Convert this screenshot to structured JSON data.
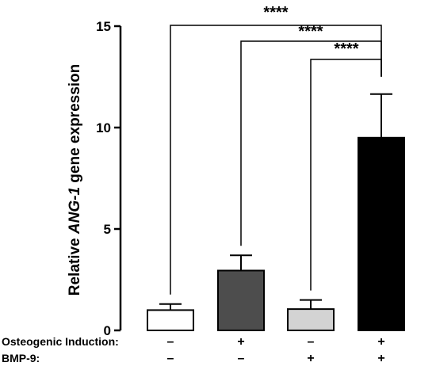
{
  "chart_data": {
    "type": "bar",
    "ylabel_prefix": "Relative ",
    "ylabel_gene": "ANG-1",
    "ylabel_suffix": " gene expression",
    "xlabel": "",
    "ylim": [
      0,
      15
    ],
    "yticks": [
      0,
      5,
      10,
      15
    ],
    "grid": false,
    "legend": "none",
    "values": [
      1.0,
      2.95,
      1.05,
      9.5
    ],
    "errors": [
      0.3,
      0.75,
      0.45,
      2.15
    ],
    "colors": [
      "#ffffff",
      "#4d4d4d",
      "#d3d3d3",
      "#000000"
    ],
    "conditions": [
      {
        "label": "Osteogenic Induction:",
        "marks": [
          "–",
          "+",
          "–",
          "+"
        ]
      },
      {
        "label": "BMP-9:",
        "marks": [
          "–",
          "–",
          "+",
          "+"
        ]
      }
    ],
    "significance": [
      {
        "from": 0,
        "to": 3,
        "text": "****"
      },
      {
        "from": 1,
        "to": 3,
        "text": "****"
      },
      {
        "from": 2,
        "to": 3,
        "text": "****"
      }
    ]
  }
}
